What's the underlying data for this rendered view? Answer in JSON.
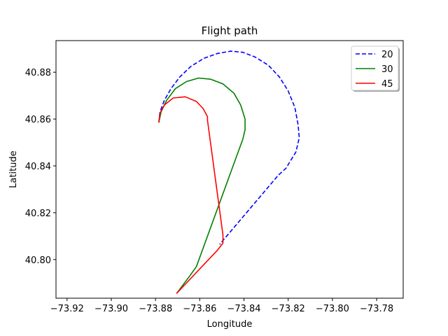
{
  "chart_data": {
    "type": "line",
    "title": "Flight path",
    "xlabel": "Longitude",
    "ylabel": "Latitude",
    "xlim": [
      -73.925,
      -73.768
    ],
    "ylim": [
      40.7835,
      40.8935
    ],
    "x_ticks": [
      -73.92,
      -73.9,
      -73.88,
      -73.86,
      -73.84,
      -73.82,
      -73.8,
      -73.78
    ],
    "x_tick_labels": [
      "−73.92",
      "−73.90",
      "−73.88",
      "−73.86",
      "−73.84",
      "−73.82",
      "−73.80",
      "−73.78"
    ],
    "y_ticks": [
      40.8,
      40.82,
      40.84,
      40.86,
      40.88
    ],
    "y_tick_labels": [
      "40.80",
      "40.82",
      "40.84",
      "40.86",
      "40.88"
    ],
    "grid": false,
    "legend_position": "top-right",
    "series": [
      {
        "name": "20",
        "color": "#0000ff",
        "style": "dashed",
        "points": [
          [
            -73.8785,
            40.8585
          ],
          [
            -73.878,
            40.863
          ],
          [
            -73.876,
            40.868
          ],
          [
            -73.873,
            40.873
          ],
          [
            -73.869,
            40.878
          ],
          [
            -73.864,
            40.8825
          ],
          [
            -73.858,
            40.886
          ],
          [
            -73.852,
            40.888
          ],
          [
            -73.846,
            40.889
          ],
          [
            -73.8405,
            40.8885
          ],
          [
            -73.835,
            40.8865
          ],
          [
            -73.829,
            40.883
          ],
          [
            -73.824,
            40.878
          ],
          [
            -73.82,
            40.872
          ],
          [
            -73.817,
            40.865
          ],
          [
            -73.8155,
            40.8575
          ],
          [
            -73.815,
            40.852
          ],
          [
            -73.8165,
            40.846
          ],
          [
            -73.821,
            40.839
          ],
          [
            -73.8245,
            40.836
          ],
          [
            -73.851,
            40.8065
          ]
        ]
      },
      {
        "name": "30",
        "color": "#008000",
        "style": "solid",
        "points": [
          [
            -73.8785,
            40.8585
          ],
          [
            -73.8775,
            40.863
          ],
          [
            -73.875,
            40.868
          ],
          [
            -73.871,
            40.873
          ],
          [
            -73.866,
            40.876
          ],
          [
            -73.8605,
            40.8775
          ],
          [
            -73.855,
            40.877
          ],
          [
            -73.8495,
            40.875
          ],
          [
            -73.8445,
            40.871
          ],
          [
            -73.8415,
            40.866
          ],
          [
            -73.8395,
            40.86
          ],
          [
            -73.8395,
            40.8555
          ],
          [
            -73.8405,
            40.8515
          ],
          [
            -73.8615,
            40.797
          ],
          [
            -73.8645,
            40.793
          ],
          [
            -73.8705,
            40.7855
          ]
        ]
      },
      {
        "name": "45",
        "color": "#ff0000",
        "style": "solid",
        "points": [
          [
            -73.8785,
            40.8585
          ],
          [
            -73.878,
            40.8625
          ],
          [
            -73.876,
            40.866
          ],
          [
            -73.872,
            40.869
          ],
          [
            -73.8665,
            40.8695
          ],
          [
            -73.8615,
            40.8675
          ],
          [
            -73.8585,
            40.8645
          ],
          [
            -73.8565,
            40.861
          ],
          [
            -73.8565,
            40.8595
          ],
          [
            -73.8495,
            40.8105
          ],
          [
            -73.8495,
            40.807
          ],
          [
            -73.852,
            40.804
          ],
          [
            -73.8705,
            40.7855
          ]
        ]
      }
    ]
  }
}
